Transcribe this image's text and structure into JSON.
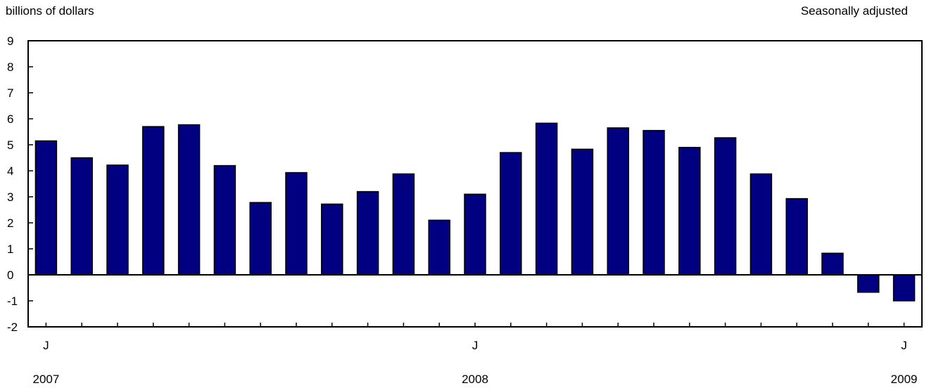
{
  "header": {
    "unit_label": "billions of dollars",
    "adjustment_label": "Seasonally adjusted"
  },
  "chart_data": {
    "type": "bar",
    "title": "",
    "ylabel": "billions of dollars",
    "note": "Seasonally adjusted",
    "ylim": [
      -2,
      9
    ],
    "yticks": [
      9,
      8,
      7,
      6,
      5,
      4,
      3,
      2,
      1,
      0,
      -1,
      -2
    ],
    "grid": false,
    "categories": [
      "2007-01",
      "2007-02",
      "2007-03",
      "2007-04",
      "2007-05",
      "2007-06",
      "2007-07",
      "2007-08",
      "2007-09",
      "2007-10",
      "2007-11",
      "2007-12",
      "2008-01",
      "2008-02",
      "2008-03",
      "2008-04",
      "2008-05",
      "2008-06",
      "2008-07",
      "2008-08",
      "2008-09",
      "2008-10",
      "2008-11",
      "2008-12",
      "2009-01"
    ],
    "values": [
      5.15,
      4.5,
      4.22,
      5.7,
      5.77,
      4.2,
      2.78,
      3.93,
      2.72,
      3.2,
      3.88,
      2.1,
      3.1,
      4.7,
      5.83,
      4.83,
      5.65,
      5.55,
      4.9,
      5.27,
      3.88,
      2.93,
      0.83,
      -0.67,
      -1.0
    ],
    "bar_color": "#000080",
    "x_tick_labels": [
      {
        "index": 0,
        "month": "J",
        "year": "2007"
      },
      {
        "index": 12,
        "month": "J",
        "year": "2008"
      },
      {
        "index": 24,
        "month": "J",
        "year": "2009"
      }
    ]
  }
}
